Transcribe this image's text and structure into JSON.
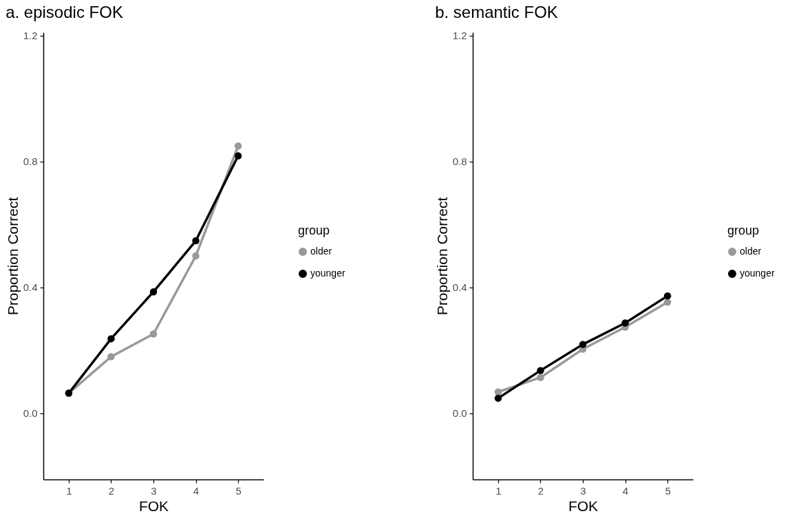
{
  "chart_data": [
    {
      "type": "line",
      "title": "a. episodic FOK",
      "xlabel": "FOK",
      "ylabel": "Proportion Correct",
      "legend_title": "group",
      "legend": "right",
      "marker": "circle",
      "x": [
        1,
        2,
        3,
        4,
        5
      ],
      "xlim": [
        0.4,
        5.6
      ],
      "xticks": [
        1,
        2,
        3,
        4,
        5
      ],
      "ylim": [
        -0.21,
        1.21
      ],
      "yticks": [
        {
          "value": 0,
          "label": "0.0"
        },
        0.4,
        0.8,
        1.2
      ],
      "series": [
        {
          "name": "older",
          "color": "#999999",
          "values": [
            0.064,
            0.18,
            0.252,
            0.5,
            0.849
          ]
        },
        {
          "name": "younger",
          "color": "#000000",
          "values": [
            0.064,
            0.237,
            0.386,
            0.548,
            0.818
          ]
        }
      ]
    },
    {
      "type": "line",
      "title": "b. semantic FOK",
      "xlabel": "FOK",
      "ylabel": "Proportion Correct",
      "legend_title": "group",
      "legend": "right",
      "marker": "circle",
      "x": [
        1,
        2,
        3,
        4,
        5
      ],
      "xlim": [
        0.4,
        5.6
      ],
      "xticks": [
        1,
        2,
        3,
        4,
        5
      ],
      "ylim": [
        -0.21,
        1.21
      ],
      "yticks": [
        {
          "value": 0,
          "label": "0.0"
        },
        0.4,
        0.8,
        1.2
      ],
      "series": [
        {
          "name": "older",
          "color": "#999999",
          "values": [
            0.068,
            0.114,
            0.204,
            0.274,
            0.353
          ]
        },
        {
          "name": "younger",
          "color": "#000000",
          "values": [
            0.048,
            0.136,
            0.219,
            0.287,
            0.373
          ]
        }
      ]
    }
  ]
}
